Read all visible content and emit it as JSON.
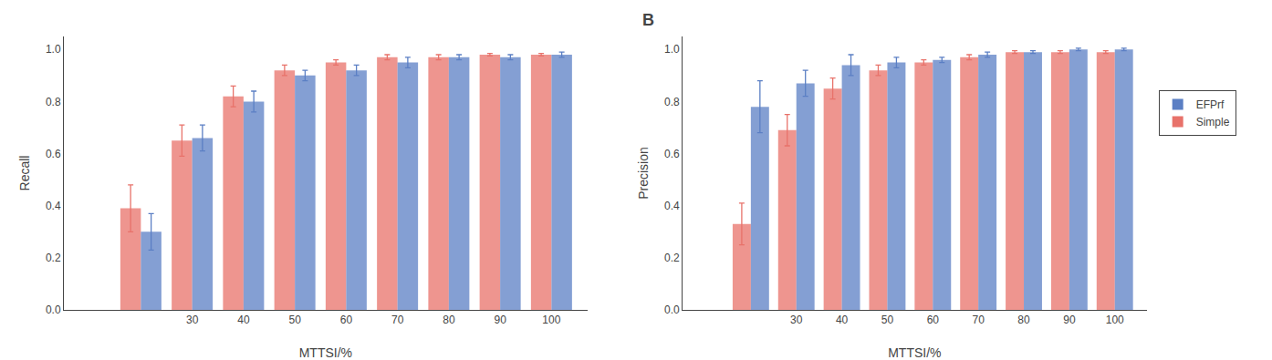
{
  "chart_data": [
    {
      "type": "bar",
      "xlabel": "MTTSI/%",
      "ylabel": "Recall",
      "x": [
        20,
        30,
        40,
        50,
        60,
        70,
        80,
        90,
        100
      ],
      "series": [
        {
          "name": "Simple",
          "color": "#e8726a",
          "values": [
            0.39,
            0.65,
            0.82,
            0.92,
            0.95,
            0.97,
            0.97,
            0.98,
            0.98
          ],
          "errors": [
            0.09,
            0.06,
            0.04,
            0.02,
            0.01,
            0.01,
            0.01,
            0.005,
            0.005
          ]
        },
        {
          "name": "EFPrf",
          "color": "#5b7fc4",
          "values": [
            0.3,
            0.66,
            0.8,
            0.9,
            0.92,
            0.95,
            0.97,
            0.97,
            0.98
          ],
          "errors": [
            0.07,
            0.05,
            0.04,
            0.02,
            0.02,
            0.02,
            0.01,
            0.01,
            0.01
          ]
        }
      ],
      "xlim": [
        5,
        107
      ],
      "xticks": [
        30,
        40,
        50,
        60,
        70,
        80,
        90,
        100
      ],
      "ylim": [
        0.0,
        1.05
      ],
      "yticks": [
        {
          "value": 0.0,
          "label": "0.0"
        },
        0.2,
        0.4,
        0.6,
        0.8,
        {
          "value": 1.0,
          "label": "1.0"
        }
      ],
      "grid": false
    },
    {
      "type": "bar",
      "xlabel": "MTTSI/%",
      "ylabel": "Precision",
      "annotations": [
        "B"
      ],
      "x": [
        20,
        30,
        40,
        50,
        60,
        70,
        80,
        90,
        100
      ],
      "series": [
        {
          "name": "Simple",
          "color": "#e8726a",
          "values": [
            0.33,
            0.69,
            0.85,
            0.92,
            0.95,
            0.97,
            0.99,
            0.99,
            0.99
          ],
          "errors": [
            0.08,
            0.06,
            0.04,
            0.02,
            0.01,
            0.01,
            0.005,
            0.005,
            0.005
          ]
        },
        {
          "name": "EFPrf",
          "color": "#5b7fc4",
          "values": [
            0.78,
            0.87,
            0.94,
            0.95,
            0.96,
            0.98,
            0.99,
            1.0,
            1.0
          ],
          "errors": [
            0.1,
            0.05,
            0.04,
            0.02,
            0.01,
            0.01,
            0.005,
            0.005,
            0.005
          ]
        }
      ],
      "xlim": [
        5,
        107
      ],
      "xticks": [
        30,
        40,
        50,
        60,
        70,
        80,
        90,
        100
      ],
      "ylim": [
        0.0,
        1.05
      ],
      "yticks": [
        {
          "value": 0.0,
          "label": "0.0"
        },
        0.2,
        0.4,
        0.6,
        0.8,
        {
          "value": 1.0,
          "label": "1.0"
        }
      ],
      "grid": false,
      "legend": "right"
    }
  ]
}
